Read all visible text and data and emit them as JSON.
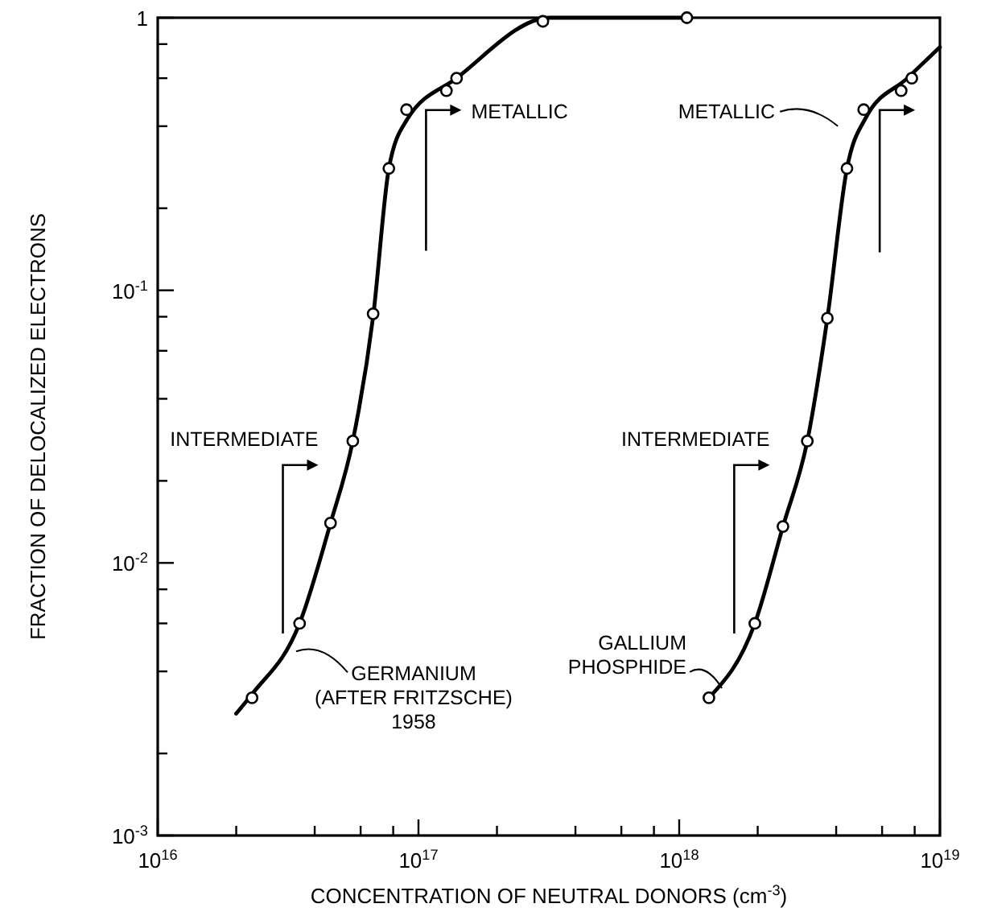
{
  "chart_data": {
    "type": "scatter",
    "xlabel": "CONCENTRATION OF NEUTRAL DONORS (cm$^{-3}$)",
    "ylabel": "FRACTION OF DELOCALIZED ELECTRONS",
    "log": "xy",
    "grid": false,
    "marker": "circle",
    "xlim": [
      1e+16,
      1e+19
    ],
    "ylim": [
      0.001,
      1
    ],
    "xticks": [
      {
        "value": 1e+16,
        "label": "10$^{16}$"
      },
      {
        "value": 2e+16,
        "label": null
      },
      {
        "value": 4e+16,
        "label": null
      },
      {
        "value": 6e+16,
        "label": null
      },
      {
        "value": 8e+16,
        "label": null
      },
      {
        "value": 1e+17,
        "label": "10$^{17}$"
      },
      {
        "value": 2e+17,
        "label": null
      },
      {
        "value": 4e+17,
        "label": null
      },
      {
        "value": 6e+17,
        "label": null
      },
      {
        "value": 8e+17,
        "label": null
      },
      {
        "value": 1e+18,
        "label": "10$^{18}$"
      },
      {
        "value": 2e+18,
        "label": null
      },
      {
        "value": 4e+18,
        "label": null
      },
      {
        "value": 6e+18,
        "label": null
      },
      {
        "value": 8e+18,
        "label": null
      },
      {
        "value": 1e+19,
        "label": "10$^{19}$"
      }
    ],
    "yticks": [
      {
        "value": 0.001,
        "label": "10$^{-3}$"
      },
      {
        "value": 0.002,
        "label": null
      },
      {
        "value": 0.004,
        "label": null
      },
      {
        "value": 0.006,
        "label": null
      },
      {
        "value": 0.008,
        "label": null
      },
      {
        "value": 0.01,
        "label": "10$^{-2}$"
      },
      {
        "value": 0.02,
        "label": null
      },
      {
        "value": 0.04,
        "label": null
      },
      {
        "value": 0.06,
        "label": null
      },
      {
        "value": 0.08,
        "label": null
      },
      {
        "value": 0.1,
        "label": "10$^{-1}$"
      },
      {
        "value": 0.2,
        "label": null
      },
      {
        "value": 0.4,
        "label": null
      },
      {
        "value": 0.6,
        "label": null
      },
      {
        "value": 0.8,
        "label": null
      },
      {
        "value": 1,
        "label": "1"
      }
    ],
    "series": [
      {
        "type": "line",
        "color": "#000000",
        "marker": "none",
        "line_style": "solid",
        "x": [
          2e+16,
          2.3e+16,
          3.5e+16,
          4.6e+16,
          5.6e+16,
          6.7e+16,
          7.7e+16,
          9e+16,
          1.4e+17,
          3.2e+17,
          1.07e+18
        ],
        "values": [
          0.0028,
          0.0033,
          0.006,
          0.014,
          0.028,
          0.08,
          0.28,
          0.42,
          0.6,
          1,
          1
        ]
      },
      {
        "color": "#000000",
        "x": [
          2.3e+16,
          3.5e+16,
          4.6e+16,
          5.6e+16,
          6.7e+16,
          7.7e+16,
          9e+16,
          1.28e+17,
          1.4e+17,
          3e+17,
          1.07e+18
        ],
        "values": [
          0.0032,
          0.006,
          0.014,
          0.028,
          0.082,
          0.28,
          0.46,
          0.54,
          0.6,
          0.97,
          1
        ]
      },
      {
        "type": "line",
        "color": "#000000",
        "marker": "none",
        "line_style": "solid",
        "x": [
          1.3e+18,
          1.95e+18,
          2.5e+18,
          3.1e+18,
          3.7e+18,
          4.4e+18,
          5.2e+18,
          7.5e+18,
          1e+19
        ],
        "values": [
          0.0032,
          0.006,
          0.0136,
          0.028,
          0.079,
          0.28,
          0.43,
          0.6,
          0.78
        ]
      },
      {
        "color": "#000000",
        "x": [
          1.3e+18,
          1.95e+18,
          2.5e+18,
          3.1e+18,
          3.7e+18,
          4.4e+18,
          5.1e+18,
          7.1e+18,
          7.8e+18
        ],
        "values": [
          0.0032,
          0.006,
          0.0136,
          0.028,
          0.079,
          0.28,
          0.46,
          0.54,
          0.6
        ]
      }
    ],
    "annotations": [
      "INTERMEDIATE",
      "METALLIC",
      {
        "text": "GERMANIUM\n(AFTER FRITZSCHE)\n1958",
        "x": 3.3e+16,
        "y": 0.005
      },
      "INTERMEDIATE",
      "METALLIC",
      {
        "text": "GALLIUM\nPHOSPHIDE",
        "x": 1.5e+18,
        "y": 0.0042
      }
    ]
  }
}
